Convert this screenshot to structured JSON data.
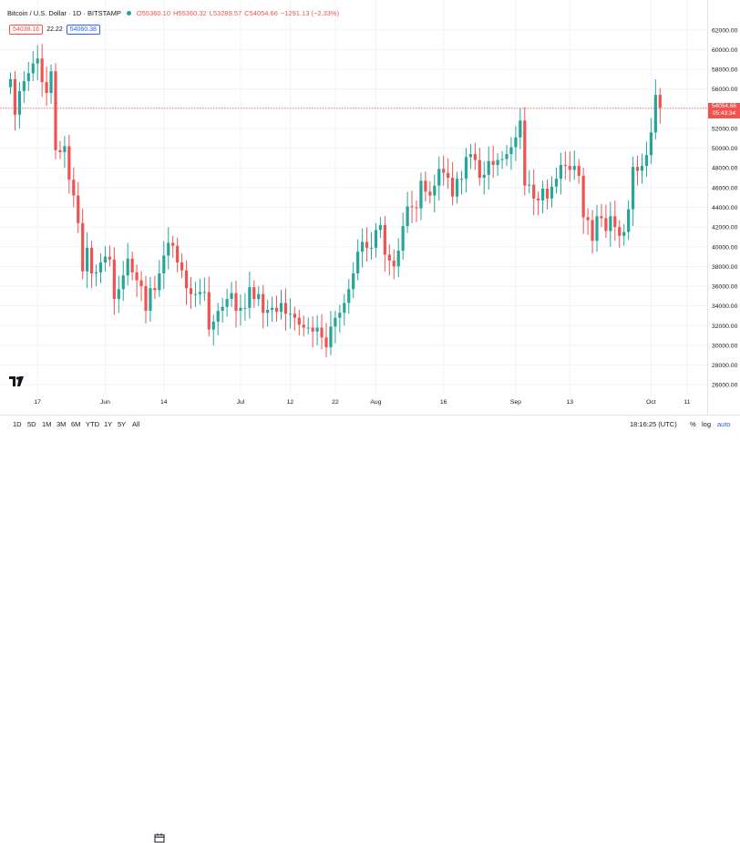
{
  "legend": {
    "symbol": "Bitcoin / U.S. Dollar · 1D · BITSTAMP",
    "open": "O55360.10",
    "high": "H55360.32",
    "low": "L53289.57",
    "close": "C54054.66",
    "change": "−1291.13 (−2.33%)"
  },
  "quotes": {
    "sell": "54038.16",
    "spread": "22.22",
    "buy": "54060.38"
  },
  "price_tag": {
    "price": "54054.66",
    "countdown": "05:43:34"
  },
  "toolbar": {
    "timeframes": [
      "1D",
      "5D",
      "1M",
      "3M",
      "6M",
      "YTD",
      "1Y",
      "5Y",
      "All"
    ],
    "time": "18:16:25 (UTC)",
    "percent": "%",
    "log": "log",
    "auto": "auto"
  },
  "icons": {
    "logo": "tradingview-logo-icon",
    "calendar": "calendar-range-icon",
    "settings": "chart-settings-icon"
  },
  "colors": {
    "up": "#26a69a",
    "down": "#ef5350",
    "grid": "#f0f3fa",
    "price_line": "#ef5350"
  },
  "chart_data": {
    "type": "candlestick",
    "title": "Bitcoin / U.S. Dollar",
    "interval": "1D",
    "exchange": "BITSTAMP",
    "grid": true,
    "legend_position": "top-left",
    "ylim": [
      25000,
      63000
    ],
    "y_ticks": [
      26000,
      28000,
      30000,
      32000,
      34000,
      36000,
      38000,
      40000,
      42000,
      44000,
      46000,
      48000,
      50000,
      52000,
      54000,
      56000,
      58000,
      60000,
      62000
    ],
    "y_tick_labels": [
      "26000.00",
      "28000.00",
      "30000.00",
      "32000.00",
      "34000.00",
      "36000.00",
      "38000.00",
      "40000.00",
      "42000.00",
      "44000.00",
      "46000.00",
      "48000.00",
      "50000.00",
      "52000.00",
      "54000.00",
      "56000.00",
      "58000.00",
      "60000.00",
      "62000.00"
    ],
    "x_ticks": [
      {
        "label": "17",
        "index": 6
      },
      {
        "label": "Jun",
        "index": 21
      },
      {
        "label": "14",
        "index": 34
      },
      {
        "label": "Jul",
        "index": 51
      },
      {
        "label": "12",
        "index": 62
      },
      {
        "label": "22",
        "index": 72
      },
      {
        "label": "Aug",
        "index": 81
      },
      {
        "label": "16",
        "index": 96
      },
      {
        "label": "Sep",
        "index": 112
      },
      {
        "label": "13",
        "index": 124
      },
      {
        "label": "Oct",
        "index": 142
      },
      {
        "label": "11",
        "index": 150
      }
    ],
    "last_close": 54054.66,
    "closes": [
      57000,
      53400,
      55800,
      56800,
      57600,
      58600,
      59100,
      56700,
      55600,
      57800,
      49800,
      49600,
      50200,
      46800,
      45200,
      42400,
      37500,
      39900,
      37300,
      37400,
      38400,
      39000,
      38700,
      34700,
      35700,
      37100,
      38800,
      37400,
      36600,
      36000,
      33500,
      35800,
      35600,
      37300,
      39100,
      40400,
      40100,
      38400,
      37600,
      35800,
      35200,
      35200,
      35400,
      35400,
      31600,
      32400,
      33500,
      33900,
      34700,
      35300,
      33500,
      33800,
      33800,
      35900,
      34700,
      35200,
      33300,
      33600,
      33800,
      33400,
      34300,
      33200,
      33200,
      32800,
      32100,
      31800,
      31800,
      31400,
      31800,
      30800,
      29800,
      31900,
      32800,
      33300,
      34300,
      35700,
      37300,
      39500,
      40500,
      39900,
      39900,
      41700,
      42200,
      39200,
      38600,
      38000,
      39600,
      42100,
      44100,
      44000,
      43900,
      46700,
      45600,
      45200,
      46200,
      47900,
      47500,
      47000,
      45100,
      46900,
      46900,
      49100,
      49400,
      48800,
      47000,
      47300,
      48700,
      48300,
      48800,
      48900,
      49400,
      50100,
      51100,
      52800,
      46200,
      46300,
      44900,
      44700,
      45900,
      44900,
      46100,
      46900,
      48300,
      48200,
      47800,
      48200,
      47200,
      43000,
      42700,
      40600,
      43100,
      42900,
      41600,
      43100,
      42000,
      41100,
      41500,
      43800,
      48100,
      47700,
      48200,
      49300,
      51600,
      55400,
      54100
    ]
  }
}
